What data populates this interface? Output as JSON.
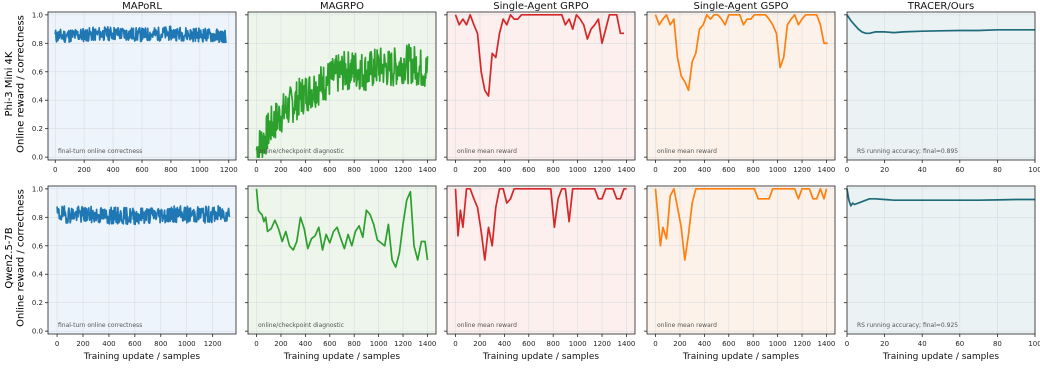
{
  "figure": {
    "row_ylabels": [
      "Phi-3 Mini 4K\nOnline reward / correctness",
      "Qwen2.5-7B\nOnline reward / correctness"
    ],
    "xlabel": "Training update / samples"
  },
  "chart_data": [
    {
      "type": "line",
      "title": "MAPoRL",
      "row": 0,
      "col": 0,
      "color": "#1f77b4",
      "bg": "#eef4fb",
      "annotation": "final-turn online correctness",
      "xlim": [
        -50,
        1250
      ],
      "xticks": [
        0,
        200,
        400,
        600,
        800,
        1000,
        1200
      ],
      "ylim": [
        -0.02,
        1.02
      ],
      "yticks": [
        0.0,
        0.2,
        0.4,
        0.6,
        0.8,
        1.0
      ],
      "x": [
        0,
        200,
        400,
        600,
        800,
        1000,
        1180
      ],
      "y": [
        0.85,
        0.86,
        0.87,
        0.86,
        0.87,
        0.86,
        0.85
      ],
      "noise": 0.05,
      "seed": 11
    },
    {
      "type": "line",
      "title": "MAGRPO",
      "row": 0,
      "col": 1,
      "color": "#2ca02c",
      "bg": "#eef6ec",
      "annotation": "online/checkpoint diagnostic",
      "xlim": [
        -70,
        1470
      ],
      "xticks": [
        0,
        200,
        400,
        600,
        800,
        1000,
        1200,
        1400
      ],
      "ylim": [
        -0.02,
        1.02
      ],
      "yticks": [
        0.0,
        0.2,
        0.4,
        0.6,
        0.8,
        1.0
      ],
      "x": [
        0,
        60,
        120,
        200,
        300,
        400,
        500,
        600,
        700,
        800,
        900,
        1000,
        1100,
        1200,
        1300,
        1400
      ],
      "y": [
        0.05,
        0.12,
        0.22,
        0.3,
        0.38,
        0.45,
        0.5,
        0.55,
        0.6,
        0.62,
        0.6,
        0.64,
        0.62,
        0.66,
        0.65,
        0.6
      ],
      "noise": 0.14,
      "seed": 7
    },
    {
      "type": "line",
      "title": "Single-Agent GRPO",
      "row": 0,
      "col": 2,
      "color": "#d62728",
      "bg": "#fcefee",
      "annotation": "online mean reward",
      "xlim": [
        -70,
        1470
      ],
      "xticks": [
        0,
        200,
        400,
        600,
        800,
        1000,
        1200,
        1400
      ],
      "ylim": [
        -0.02,
        1.02
      ],
      "yticks": [
        0.0,
        0.2,
        0.4,
        0.6,
        0.8,
        1.0
      ],
      "x": [
        0,
        30,
        60,
        90,
        120,
        150,
        180,
        210,
        240,
        270,
        300,
        330,
        360,
        390,
        420,
        450,
        480,
        510,
        540,
        570,
        600,
        630,
        660,
        690,
        720,
        750,
        780,
        810,
        840,
        870,
        900,
        930,
        960,
        990,
        1020,
        1050,
        1080,
        1110,
        1140,
        1170,
        1200,
        1230,
        1260,
        1290,
        1320,
        1350,
        1380
      ],
      "y": [
        1.0,
        0.93,
        0.97,
        0.93,
        1.0,
        0.93,
        0.87,
        0.6,
        0.47,
        0.43,
        0.73,
        0.7,
        0.87,
        0.97,
        0.93,
        1.0,
        0.97,
        0.97,
        1.0,
        1.0,
        1.0,
        1.0,
        1.0,
        1.0,
        1.0,
        1.0,
        1.0,
        1.0,
        1.0,
        1.0,
        0.93,
        0.97,
        0.9,
        1.0,
        0.97,
        0.93,
        0.83,
        0.9,
        0.93,
        0.97,
        0.8,
        0.9,
        1.0,
        1.0,
        1.0,
        0.87,
        0.87
      ]
    },
    {
      "type": "line",
      "title": "Single-Agent GSPO",
      "row": 0,
      "col": 3,
      "color": "#ff7f0e",
      "bg": "#fdf2ea",
      "annotation": "online mean reward",
      "xlim": [
        -70,
        1470
      ],
      "xticks": [
        0,
        200,
        400,
        600,
        800,
        1000,
        1200,
        1400
      ],
      "ylim": [
        -0.02,
        1.02
      ],
      "yticks": [
        0.0,
        0.2,
        0.4,
        0.6,
        0.8,
        1.0
      ],
      "x": [
        0,
        30,
        60,
        90,
        120,
        150,
        180,
        210,
        240,
        270,
        300,
        330,
        360,
        390,
        420,
        450,
        480,
        510,
        540,
        570,
        600,
        630,
        660,
        690,
        720,
        750,
        780,
        810,
        840,
        870,
        900,
        930,
        960,
        990,
        1020,
        1050,
        1080,
        1110,
        1140,
        1170,
        1200,
        1230,
        1260,
        1290,
        1320,
        1350,
        1380,
        1410
      ],
      "y": [
        1.0,
        0.93,
        0.97,
        1.0,
        0.93,
        0.97,
        0.7,
        0.57,
        0.53,
        0.47,
        0.67,
        0.73,
        0.9,
        0.93,
        1.0,
        0.97,
        1.0,
        1.0,
        0.97,
        0.93,
        1.0,
        1.0,
        1.0,
        1.0,
        0.93,
        0.97,
        0.97,
        1.0,
        1.0,
        1.0,
        1.0,
        0.97,
        0.93,
        0.87,
        0.63,
        0.7,
        0.93,
        0.97,
        1.0,
        0.93,
        0.97,
        1.0,
        1.0,
        1.0,
        1.0,
        0.93,
        0.8,
        0.8
      ]
    },
    {
      "type": "line",
      "title": "TRACER/Ours",
      "row": 0,
      "col": 4,
      "color": "#1d6b7a",
      "bg": "#eaf2f3",
      "annotation": "RS running accuracy; final=0.895",
      "xlim": [
        0,
        100
      ],
      "xticks": [
        0,
        20,
        40,
        60,
        80,
        100
      ],
      "ylim": [
        -0.02,
        1.02
      ],
      "yticks": [
        0.0,
        0.2,
        0.4,
        0.6,
        0.8,
        1.0
      ],
      "x": [
        0,
        2,
        4,
        6,
        8,
        10,
        12,
        15,
        20,
        25,
        30,
        40,
        50,
        60,
        70,
        80,
        90,
        100
      ],
      "y": [
        1.0,
        0.96,
        0.93,
        0.9,
        0.88,
        0.87,
        0.87,
        0.88,
        0.88,
        0.875,
        0.88,
        0.885,
        0.888,
        0.89,
        0.89,
        0.895,
        0.895,
        0.895
      ]
    },
    {
      "type": "line",
      "title": "",
      "row": 1,
      "col": 0,
      "color": "#1f77b4",
      "bg": "#eef4fb",
      "annotation": "final-turn online correctness",
      "xlim": [
        -70,
        1380
      ],
      "xticks": [
        0,
        200,
        400,
        600,
        800,
        1000,
        1200
      ],
      "ylim": [
        -0.02,
        1.02
      ],
      "yticks": [
        0.0,
        0.2,
        0.4,
        0.6,
        0.8,
        1.0
      ],
      "x": [
        0,
        200,
        400,
        600,
        800,
        1000,
        1200,
        1330
      ],
      "y": [
        0.82,
        0.82,
        0.81,
        0.81,
        0.82,
        0.82,
        0.82,
        0.83
      ],
      "noise": 0.06,
      "seed": 19
    },
    {
      "type": "line",
      "title": "",
      "row": 1,
      "col": 1,
      "color": "#2ca02c",
      "bg": "#eef6ec",
      "annotation": "online/checkpoint diagnostic",
      "xlim": [
        -70,
        1470
      ],
      "xticks": [
        0,
        200,
        400,
        600,
        800,
        1000,
        1200,
        1400
      ],
      "ylim": [
        -0.02,
        1.02
      ],
      "yticks": [
        0.0,
        0.2,
        0.4,
        0.6,
        0.8,
        1.0
      ],
      "x": [
        0,
        15,
        30,
        45,
        60,
        75,
        90,
        120,
        150,
        180,
        210,
        240,
        270,
        300,
        330,
        360,
        390,
        420,
        450,
        480,
        510,
        540,
        570,
        600,
        630,
        660,
        690,
        720,
        750,
        780,
        810,
        840,
        870,
        900,
        930,
        960,
        990,
        1020,
        1050,
        1080,
        1110,
        1140,
        1170,
        1200,
        1230,
        1260,
        1290,
        1320,
        1350,
        1380,
        1400
      ],
      "y": [
        1.0,
        0.85,
        0.83,
        0.82,
        0.77,
        0.8,
        0.7,
        0.72,
        0.78,
        0.72,
        0.63,
        0.7,
        0.6,
        0.57,
        0.63,
        0.8,
        0.72,
        0.58,
        0.65,
        0.67,
        0.73,
        0.57,
        0.68,
        0.62,
        0.7,
        0.73,
        0.65,
        0.58,
        0.68,
        0.6,
        0.7,
        0.74,
        0.66,
        0.85,
        0.82,
        0.75,
        0.64,
        0.62,
        0.6,
        0.75,
        0.5,
        0.45,
        0.55,
        0.75,
        0.92,
        0.98,
        0.6,
        0.5,
        0.63,
        0.63,
        0.5
      ]
    },
    {
      "type": "line",
      "title": "",
      "row": 1,
      "col": 2,
      "color": "#d62728",
      "bg": "#fcefee",
      "annotation": "online mean reward",
      "xlim": [
        -70,
        1470
      ],
      "xticks": [
        0,
        200,
        400,
        600,
        800,
        1000,
        1200,
        1400
      ],
      "ylim": [
        -0.02,
        1.02
      ],
      "yticks": [
        0.0,
        0.2,
        0.4,
        0.6,
        0.8,
        1.0
      ],
      "x": [
        0,
        20,
        40,
        60,
        90,
        120,
        150,
        180,
        210,
        240,
        270,
        300,
        330,
        360,
        390,
        420,
        450,
        480,
        510,
        540,
        570,
        600,
        630,
        660,
        690,
        720,
        750,
        780,
        810,
        840,
        870,
        900,
        930,
        960,
        990,
        1020,
        1050,
        1080,
        1110,
        1140,
        1170,
        1200,
        1230,
        1260,
        1290,
        1320,
        1350,
        1380,
        1400
      ],
      "y": [
        1.0,
        0.67,
        0.85,
        0.73,
        1.0,
        1.0,
        0.93,
        0.87,
        0.7,
        0.5,
        0.73,
        0.6,
        0.87,
        1.0,
        1.0,
        0.9,
        0.93,
        1.0,
        1.0,
        1.0,
        1.0,
        1.0,
        1.0,
        1.0,
        1.0,
        1.0,
        1.0,
        1.0,
        0.73,
        0.93,
        1.0,
        1.0,
        0.77,
        1.0,
        1.0,
        1.0,
        1.0,
        1.0,
        1.0,
        1.0,
        0.93,
        0.93,
        1.0,
        1.0,
        1.0,
        0.93,
        0.93,
        1.0,
        1.0
      ]
    },
    {
      "type": "line",
      "title": "",
      "row": 1,
      "col": 3,
      "color": "#ff7f0e",
      "bg": "#fdf2ea",
      "annotation": "online mean reward",
      "xlim": [
        -70,
        1470
      ],
      "xticks": [
        0,
        200,
        400,
        600,
        800,
        1000,
        1200,
        1400
      ],
      "ylim": [
        -0.02,
        1.02
      ],
      "yticks": [
        0.0,
        0.2,
        0.4,
        0.6,
        0.8,
        1.0
      ],
      "x": [
        0,
        20,
        40,
        60,
        90,
        120,
        150,
        180,
        210,
        240,
        270,
        300,
        330,
        360,
        390,
        420,
        450,
        480,
        510,
        540,
        570,
        600,
        630,
        660,
        690,
        720,
        750,
        780,
        810,
        840,
        870,
        900,
        930,
        960,
        990,
        1020,
        1050,
        1080,
        1110,
        1140,
        1170,
        1200,
        1230,
        1260,
        1290,
        1320,
        1350,
        1380,
        1400
      ],
      "y": [
        1.0,
        0.8,
        0.6,
        0.73,
        0.65,
        0.95,
        1.0,
        0.87,
        0.73,
        0.5,
        0.68,
        0.9,
        1.0,
        1.0,
        1.0,
        1.0,
        1.0,
        1.0,
        1.0,
        1.0,
        1.0,
        1.0,
        1.0,
        1.0,
        1.0,
        1.0,
        1.0,
        1.0,
        1.0,
        0.93,
        0.93,
        0.93,
        0.93,
        1.0,
        1.0,
        1.0,
        1.0,
        1.0,
        1.0,
        1.0,
        0.93,
        1.0,
        1.0,
        1.0,
        0.93,
        0.93,
        1.0,
        0.93,
        1.0
      ]
    },
    {
      "type": "line",
      "title": "",
      "row": 1,
      "col": 4,
      "color": "#1d6b7a",
      "bg": "#eaf2f3",
      "annotation": "RS running accuracy; final=0.925",
      "xlim": [
        0,
        100
      ],
      "xticks": [
        0,
        20,
        40,
        60,
        80,
        100
      ],
      "ylim": [
        -0.02,
        1.02
      ],
      "yticks": [
        0.0,
        0.2,
        0.4,
        0.6,
        0.8,
        1.0
      ],
      "x": [
        0,
        1,
        2,
        3,
        4,
        6,
        8,
        10,
        12,
        15,
        20,
        25,
        30,
        40,
        50,
        60,
        70,
        80,
        90,
        100
      ],
      "y": [
        1.0,
        0.92,
        0.88,
        0.9,
        0.89,
        0.9,
        0.91,
        0.92,
        0.93,
        0.93,
        0.925,
        0.92,
        0.92,
        0.92,
        0.92,
        0.92,
        0.92,
        0.922,
        0.925,
        0.925
      ]
    }
  ]
}
